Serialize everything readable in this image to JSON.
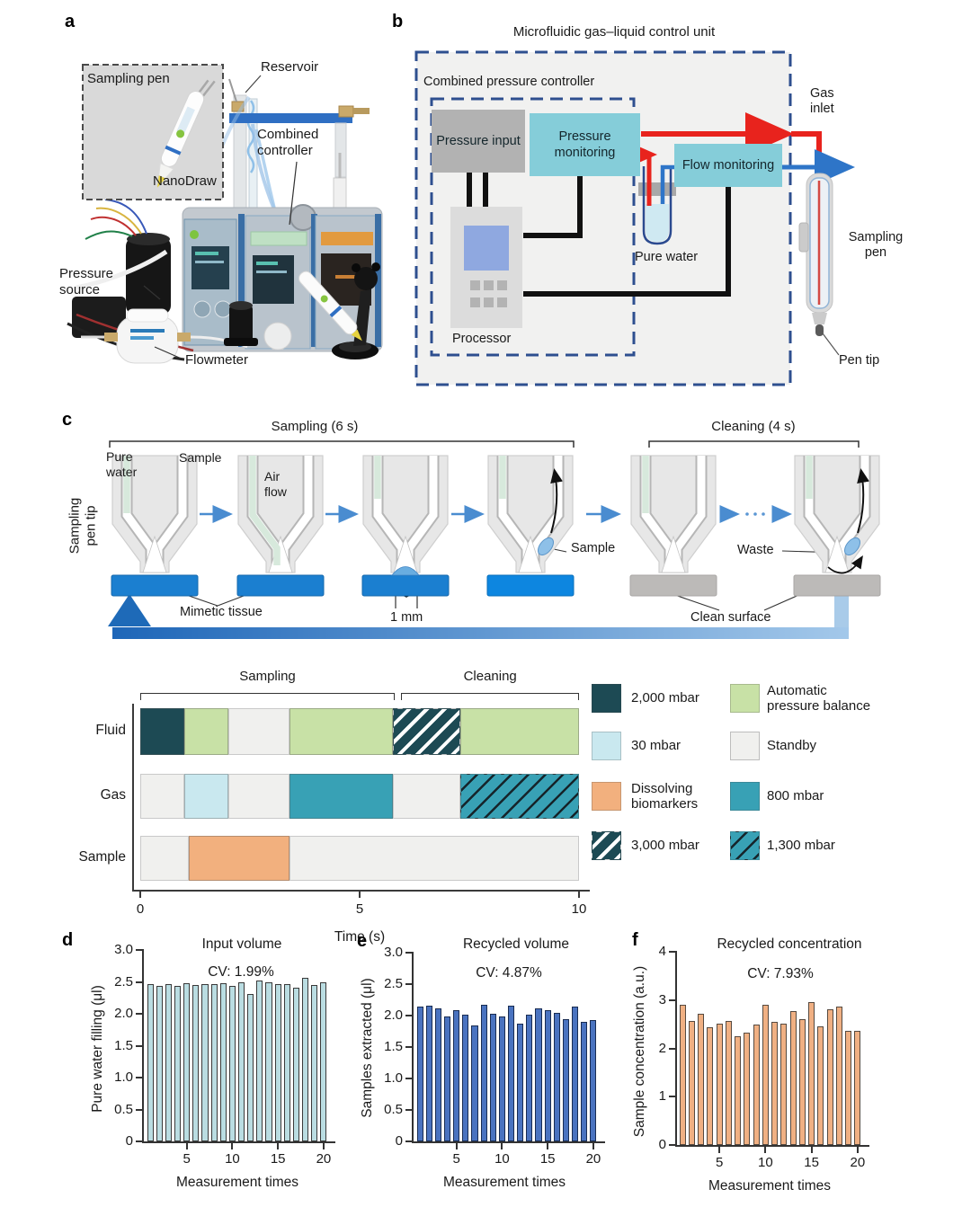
{
  "panels": {
    "a": "a",
    "b": "b",
    "c": "c",
    "d": "d",
    "e": "e",
    "f": "f"
  },
  "panel_a": {
    "inset_title": "Sampling pen",
    "product_name": "NanoDraw",
    "labels": {
      "reservoir": "Reservoir",
      "combined_controller": "Combined\ncontroller",
      "pressure_source": "Pressure\nsource",
      "flowmeter": "Flowmeter"
    }
  },
  "panel_b": {
    "title": "Microfluidic gas–liquid control unit",
    "controller_box_label": "Combined pressure controller",
    "pressure_input": "Pressure input",
    "pressure_monitoring": "Pressure monitoring",
    "flow_monitoring": "Flow monitoring",
    "processor": "Processor",
    "pure_water": "Pure water",
    "gas_inlet": "Gas\ninlet",
    "sampling_pen": "Sampling\npen",
    "pen_tip": "Pen tip",
    "colors": {
      "line_gas": "#e8231d",
      "line_liquid": "#2e75c8",
      "line_signal": "#111111",
      "box_teal": "#85cdd9",
      "box_gray": "#b2b2b2",
      "dash_border": "#2e4f8f"
    }
  },
  "panel_c": {
    "sampling_phase": "Sampling (6 s)",
    "cleaning_phase": "Cleaning (4 s)",
    "axis_label": "Sampling\npen tip",
    "pure_water": "Pure\nwater",
    "sample_left": "Sample",
    "air_flow": "Air\nflow",
    "mimetic_tissue": "Mimetic tissue",
    "scale_marker": "1 mm",
    "sample_right": "Sample",
    "waste": "Waste",
    "clean_surface": "Clean surface"
  },
  "chart_data": [
    {
      "id": "pressure-timeline",
      "type": "gantt",
      "xlabel": "Time (s)",
      "xlim": [
        0,
        10
      ],
      "xticks": [
        0,
        5,
        10
      ],
      "phases": [
        {
          "label": "Sampling",
          "start": 0,
          "end": 5.8
        },
        {
          "label": "Cleaning",
          "start": 5.95,
          "end": 10
        }
      ],
      "rows": [
        {
          "label": "Fluid",
          "segments": [
            {
              "start": 0,
              "end": 1,
              "state": "2000_mbar"
            },
            {
              "start": 1,
              "end": 2,
              "state": "auto_balance"
            },
            {
              "start": 2,
              "end": 3.4,
              "state": "standby"
            },
            {
              "start": 3.4,
              "end": 5.75,
              "state": "auto_balance"
            },
            {
              "start": 5.75,
              "end": 7.3,
              "state": "3000_mbar"
            },
            {
              "start": 7.3,
              "end": 10,
              "state": "auto_balance"
            }
          ]
        },
        {
          "label": "Gas",
          "segments": [
            {
              "start": 0,
              "end": 1,
              "state": "standby"
            },
            {
              "start": 1,
              "end": 2,
              "state": "30_mbar"
            },
            {
              "start": 2,
              "end": 3.4,
              "state": "standby"
            },
            {
              "start": 3.4,
              "end": 5.75,
              "state": "800_mbar"
            },
            {
              "start": 5.75,
              "end": 7.3,
              "state": "standby"
            },
            {
              "start": 7.3,
              "end": 10,
              "state": "1300_mbar"
            }
          ]
        },
        {
          "label": "Sample",
          "segments": [
            {
              "start": 0,
              "end": 1.1,
              "state": "standby"
            },
            {
              "start": 1.1,
              "end": 3.4,
              "state": "dissolving"
            },
            {
              "start": 3.4,
              "end": 10,
              "state": "standby"
            }
          ]
        }
      ],
      "legend": [
        {
          "state": "2000_mbar",
          "label": "2,000 mbar"
        },
        {
          "state": "30_mbar",
          "label": "30 mbar"
        },
        {
          "state": "dissolving",
          "label": "Dissolving\nbiomarkers"
        },
        {
          "state": "3000_mbar",
          "label": "3,000 mbar"
        },
        {
          "state": "auto_balance",
          "label": "Automatic\npressure balance"
        },
        {
          "state": "standby",
          "label": "Standby"
        },
        {
          "state": "800_mbar",
          "label": "800 mbar"
        },
        {
          "state": "1300_mbar",
          "label": "1,300 mbar"
        }
      ],
      "colors": {
        "2000_mbar": {
          "fill": "#1d4a54"
        },
        "30_mbar": {
          "fill": "#c9e8ef"
        },
        "dissolving": {
          "fill": "#f2b07e"
        },
        "3000_mbar": {
          "fill": "#1d4a54",
          "hatch": "#ffffff",
          "band": 10,
          "stripe": 4
        },
        "auto_balance": {
          "fill": "#c8e1a6"
        },
        "standby": {
          "fill": "#f0f0ee",
          "border": "#c9c9c9"
        },
        "800_mbar": {
          "fill": "#38a1b5"
        },
        "1300_mbar": {
          "fill": "#38a1b5",
          "hatch": "#16242a",
          "band": 11,
          "stripe": 2.5
        }
      }
    },
    {
      "id": "input-volume",
      "type": "bar",
      "title": "Input volume",
      "annotation": "CV: 1.99%",
      "ylabel": "Pure water filling (μl)",
      "xlabel": "Measurement times",
      "ylim": [
        0,
        3
      ],
      "yticks": [
        "0",
        "0.5",
        "1.0",
        "1.5",
        "2.0",
        "2.5",
        "3.0"
      ],
      "xticks": [
        5,
        10,
        15,
        20
      ],
      "bar_fill": "#badde2",
      "bar_border": "#3a3a3a",
      "values": [
        2.46,
        2.43,
        2.47,
        2.44,
        2.48,
        2.45,
        2.47,
        2.47,
        2.48,
        2.43,
        2.5,
        2.31,
        2.52,
        2.5,
        2.46,
        2.47,
        2.41,
        2.57,
        2.45,
        2.49
      ]
    },
    {
      "id": "recycled-volume",
      "type": "bar",
      "title": "Recycled volume",
      "annotation": "CV: 4.87%",
      "ylabel": "Samples extracted (μl)",
      "xlabel": "Measurement times",
      "ylim": [
        0,
        3
      ],
      "yticks": [
        "0",
        "0.5",
        "1.0",
        "1.5",
        "2.0",
        "2.5",
        "3.0"
      ],
      "xticks": [
        5,
        10,
        15,
        20
      ],
      "bar_fill": "#4a73c0",
      "bar_border": "#192c52",
      "values": [
        2.15,
        2.16,
        2.11,
        1.98,
        2.09,
        2.01,
        1.85,
        2.17,
        2.03,
        1.99,
        2.16,
        1.87,
        2.01,
        2.12,
        2.09,
        2.05,
        1.95,
        2.14,
        1.9,
        1.93
      ]
    },
    {
      "id": "recycled-concentration",
      "type": "bar",
      "title": "Recycled concentration",
      "annotation": "CV: 7.93%",
      "ylabel": "Sample concentration (a.u.)",
      "xlabel": "Measurement times",
      "ylim": [
        0,
        4
      ],
      "yticks": [
        "0",
        "1",
        "2",
        "3",
        "4"
      ],
      "xticks": [
        5,
        10,
        15,
        20
      ],
      "bar_fill": "#f0b083",
      "bar_border": "#564a40",
      "values": [
        2.9,
        2.57,
        2.71,
        2.44,
        2.51,
        2.56,
        2.26,
        2.33,
        2.5,
        2.9,
        2.55,
        2.52,
        2.77,
        2.61,
        2.96,
        2.46,
        2.81,
        2.87,
        2.36,
        2.37
      ]
    }
  ]
}
